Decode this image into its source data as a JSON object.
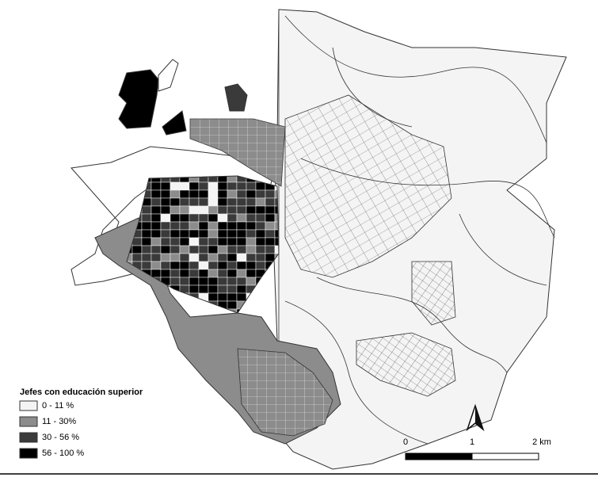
{
  "legend": {
    "title": "Jefes con educación superior",
    "items": [
      {
        "label": "0 - 11 %",
        "color": "#f4f4f4"
      },
      {
        "label": "11 - 30%",
        "color": "#8c8c8c"
      },
      {
        "label": "30 - 56 %",
        "color": "#3a3a3a"
      },
      {
        "label": "56 - 100 %",
        "color": "#000000"
      }
    ]
  },
  "scale_bar": {
    "labels": [
      "0",
      "1",
      "2 km"
    ]
  }
}
